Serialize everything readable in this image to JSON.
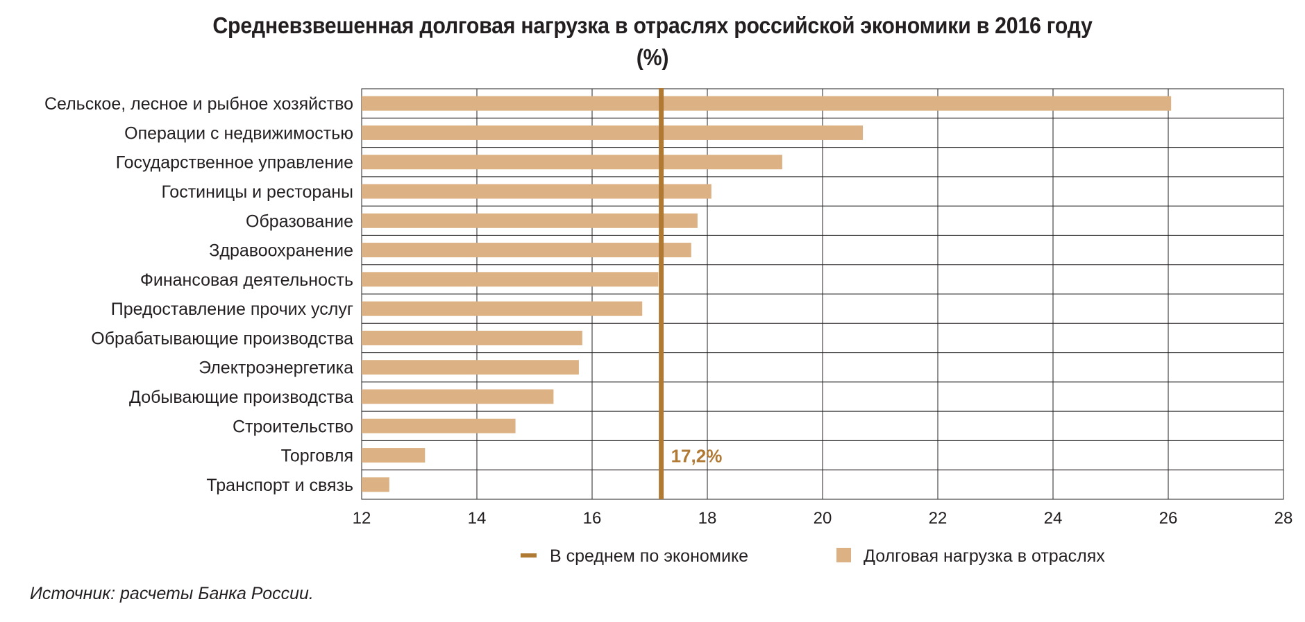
{
  "title_line1": "Средневзвешенная долговая нагрузка в отраслях российской экономики в 2016 году",
  "title_line2": "(%)",
  "source": "Источник: расчеты Банка России.",
  "colors": {
    "bar": "#dcb184",
    "average_line": "#b07a35",
    "average_label": "#b07a35",
    "grid": "#231f20"
  },
  "chart_data": {
    "type": "bar",
    "orientation": "horizontal",
    "categories": [
      "Сельское, лесное и рыбное хозяйство",
      "Операции с недвижимостью",
      "Государственное управление",
      "Гостиницы и рестораны",
      "Образование",
      "Здравоохранение",
      "Финансовая деятельность",
      "Предоставление прочих услуг",
      "Обрабатывающие производства",
      "Электроэнергетика",
      "Добывающие производства",
      "Строительство",
      "Торговля",
      "Транспорт и связь"
    ],
    "series": [
      {
        "name": "Долговая нагрузка в отраслях",
        "values": [
          26.05,
          20.7,
          19.3,
          18.07,
          17.83,
          17.72,
          17.15,
          16.87,
          15.83,
          15.77,
          15.33,
          14.67,
          13.1,
          12.48
        ]
      }
    ],
    "reference_line": {
      "name": "В среднем по экономике",
      "value": 17.2,
      "label": "17,2%"
    },
    "xlim": [
      12,
      28
    ],
    "xticks": [
      12,
      14,
      16,
      18,
      20,
      22,
      24,
      26,
      28
    ],
    "xtick_labels": [
      "12",
      "14",
      "16",
      "18",
      "20",
      "22",
      "24",
      "26",
      "28"
    ],
    "grid": true,
    "legend": {
      "position": "bottom",
      "items": [
        {
          "label": "В среднем по экономике",
          "symbol": "line"
        },
        {
          "label": "Долговая нагрузка в отраслях",
          "symbol": "square"
        }
      ]
    },
    "title": "Средневзвешенная долговая нагрузка в отраслях российской экономики в 2016 году (%)",
    "xlabel": "",
    "ylabel": ""
  }
}
